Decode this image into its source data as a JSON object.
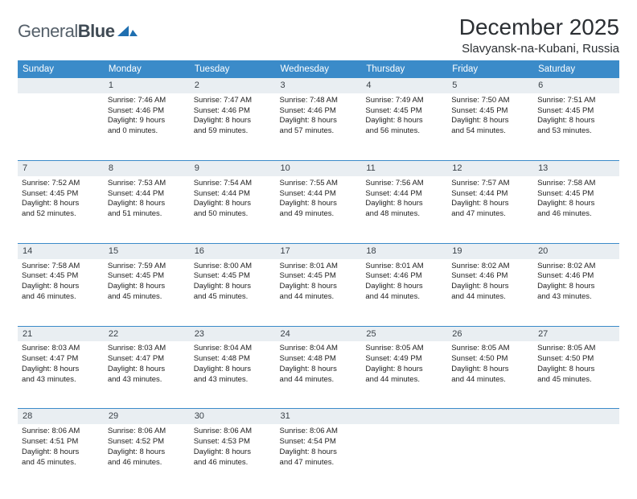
{
  "brand": {
    "word1": "General",
    "word2": "Blue"
  },
  "title": "December 2025",
  "location": "Slavyansk-na-Kubani, Russia",
  "colors": {
    "header_bg": "#3b8bc9",
    "header_text": "#ffffff",
    "daynum_bg": "#e9eef2",
    "row_divider": "#3b8bc9",
    "logo_mark": "#1f6fb0"
  },
  "weekdays": [
    "Sunday",
    "Monday",
    "Tuesday",
    "Wednesday",
    "Thursday",
    "Friday",
    "Saturday"
  ],
  "weeks": [
    [
      {
        "n": "",
        "lines": [
          "",
          "",
          "",
          ""
        ]
      },
      {
        "n": "1",
        "lines": [
          "Sunrise: 7:46 AM",
          "Sunset: 4:46 PM",
          "Daylight: 9 hours",
          "and 0 minutes."
        ]
      },
      {
        "n": "2",
        "lines": [
          "Sunrise: 7:47 AM",
          "Sunset: 4:46 PM",
          "Daylight: 8 hours",
          "and 59 minutes."
        ]
      },
      {
        "n": "3",
        "lines": [
          "Sunrise: 7:48 AM",
          "Sunset: 4:46 PM",
          "Daylight: 8 hours",
          "and 57 minutes."
        ]
      },
      {
        "n": "4",
        "lines": [
          "Sunrise: 7:49 AM",
          "Sunset: 4:45 PM",
          "Daylight: 8 hours",
          "and 56 minutes."
        ]
      },
      {
        "n": "5",
        "lines": [
          "Sunrise: 7:50 AM",
          "Sunset: 4:45 PM",
          "Daylight: 8 hours",
          "and 54 minutes."
        ]
      },
      {
        "n": "6",
        "lines": [
          "Sunrise: 7:51 AM",
          "Sunset: 4:45 PM",
          "Daylight: 8 hours",
          "and 53 minutes."
        ]
      }
    ],
    [
      {
        "n": "7",
        "lines": [
          "Sunrise: 7:52 AM",
          "Sunset: 4:45 PM",
          "Daylight: 8 hours",
          "and 52 minutes."
        ]
      },
      {
        "n": "8",
        "lines": [
          "Sunrise: 7:53 AM",
          "Sunset: 4:44 PM",
          "Daylight: 8 hours",
          "and 51 minutes."
        ]
      },
      {
        "n": "9",
        "lines": [
          "Sunrise: 7:54 AM",
          "Sunset: 4:44 PM",
          "Daylight: 8 hours",
          "and 50 minutes."
        ]
      },
      {
        "n": "10",
        "lines": [
          "Sunrise: 7:55 AM",
          "Sunset: 4:44 PM",
          "Daylight: 8 hours",
          "and 49 minutes."
        ]
      },
      {
        "n": "11",
        "lines": [
          "Sunrise: 7:56 AM",
          "Sunset: 4:44 PM",
          "Daylight: 8 hours",
          "and 48 minutes."
        ]
      },
      {
        "n": "12",
        "lines": [
          "Sunrise: 7:57 AM",
          "Sunset: 4:44 PM",
          "Daylight: 8 hours",
          "and 47 minutes."
        ]
      },
      {
        "n": "13",
        "lines": [
          "Sunrise: 7:58 AM",
          "Sunset: 4:45 PM",
          "Daylight: 8 hours",
          "and 46 minutes."
        ]
      }
    ],
    [
      {
        "n": "14",
        "lines": [
          "Sunrise: 7:58 AM",
          "Sunset: 4:45 PM",
          "Daylight: 8 hours",
          "and 46 minutes."
        ]
      },
      {
        "n": "15",
        "lines": [
          "Sunrise: 7:59 AM",
          "Sunset: 4:45 PM",
          "Daylight: 8 hours",
          "and 45 minutes."
        ]
      },
      {
        "n": "16",
        "lines": [
          "Sunrise: 8:00 AM",
          "Sunset: 4:45 PM",
          "Daylight: 8 hours",
          "and 45 minutes."
        ]
      },
      {
        "n": "17",
        "lines": [
          "Sunrise: 8:01 AM",
          "Sunset: 4:45 PM",
          "Daylight: 8 hours",
          "and 44 minutes."
        ]
      },
      {
        "n": "18",
        "lines": [
          "Sunrise: 8:01 AM",
          "Sunset: 4:46 PM",
          "Daylight: 8 hours",
          "and 44 minutes."
        ]
      },
      {
        "n": "19",
        "lines": [
          "Sunrise: 8:02 AM",
          "Sunset: 4:46 PM",
          "Daylight: 8 hours",
          "and 44 minutes."
        ]
      },
      {
        "n": "20",
        "lines": [
          "Sunrise: 8:02 AM",
          "Sunset: 4:46 PM",
          "Daylight: 8 hours",
          "and 43 minutes."
        ]
      }
    ],
    [
      {
        "n": "21",
        "lines": [
          "Sunrise: 8:03 AM",
          "Sunset: 4:47 PM",
          "Daylight: 8 hours",
          "and 43 minutes."
        ]
      },
      {
        "n": "22",
        "lines": [
          "Sunrise: 8:03 AM",
          "Sunset: 4:47 PM",
          "Daylight: 8 hours",
          "and 43 minutes."
        ]
      },
      {
        "n": "23",
        "lines": [
          "Sunrise: 8:04 AM",
          "Sunset: 4:48 PM",
          "Daylight: 8 hours",
          "and 43 minutes."
        ]
      },
      {
        "n": "24",
        "lines": [
          "Sunrise: 8:04 AM",
          "Sunset: 4:48 PM",
          "Daylight: 8 hours",
          "and 44 minutes."
        ]
      },
      {
        "n": "25",
        "lines": [
          "Sunrise: 8:05 AM",
          "Sunset: 4:49 PM",
          "Daylight: 8 hours",
          "and 44 minutes."
        ]
      },
      {
        "n": "26",
        "lines": [
          "Sunrise: 8:05 AM",
          "Sunset: 4:50 PM",
          "Daylight: 8 hours",
          "and 44 minutes."
        ]
      },
      {
        "n": "27",
        "lines": [
          "Sunrise: 8:05 AM",
          "Sunset: 4:50 PM",
          "Daylight: 8 hours",
          "and 45 minutes."
        ]
      }
    ],
    [
      {
        "n": "28",
        "lines": [
          "Sunrise: 8:06 AM",
          "Sunset: 4:51 PM",
          "Daylight: 8 hours",
          "and 45 minutes."
        ]
      },
      {
        "n": "29",
        "lines": [
          "Sunrise: 8:06 AM",
          "Sunset: 4:52 PM",
          "Daylight: 8 hours",
          "and 46 minutes."
        ]
      },
      {
        "n": "30",
        "lines": [
          "Sunrise: 8:06 AM",
          "Sunset: 4:53 PM",
          "Daylight: 8 hours",
          "and 46 minutes."
        ]
      },
      {
        "n": "31",
        "lines": [
          "Sunrise: 8:06 AM",
          "Sunset: 4:54 PM",
          "Daylight: 8 hours",
          "and 47 minutes."
        ]
      },
      {
        "n": "",
        "lines": [
          "",
          "",
          "",
          ""
        ]
      },
      {
        "n": "",
        "lines": [
          "",
          "",
          "",
          ""
        ]
      },
      {
        "n": "",
        "lines": [
          "",
          "",
          "",
          ""
        ]
      }
    ]
  ]
}
